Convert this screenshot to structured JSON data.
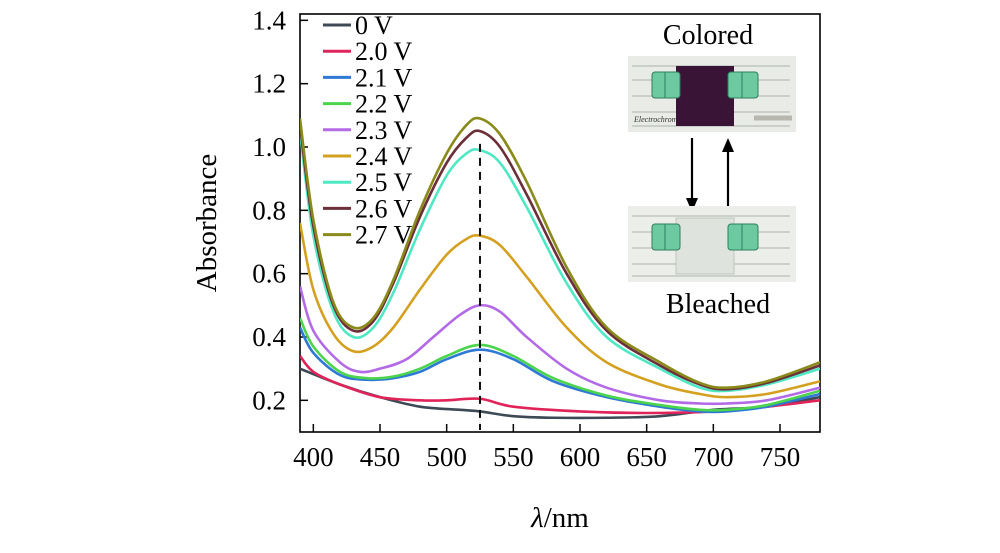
{
  "chart_data": {
    "type": "line",
    "xlabel_italic": "λ",
    "xlabel_rest": "/nm",
    "ylabel": "Absorbance",
    "xlim": [
      390,
      780
    ],
    "ylim": [
      0.1,
      1.42
    ],
    "xticks": [
      400,
      450,
      500,
      550,
      600,
      650,
      700,
      750
    ],
    "yticks": [
      0.2,
      0.4,
      0.6,
      0.8,
      1.0,
      1.2,
      1.4
    ],
    "ytick_labels": [
      "0.2",
      "0.4",
      "0.6",
      "0.8",
      "1.0",
      "1.2",
      "1.4"
    ],
    "peak_marker_x": 525,
    "series": [
      {
        "name": "0 V",
        "color": "#3d4a55",
        "x": [
          390,
          420,
          450,
          480,
          510,
          525,
          550,
          580,
          620,
          660,
          700,
          740,
          780
        ],
        "y": [
          0.3,
          0.25,
          0.21,
          0.18,
          0.17,
          0.165,
          0.15,
          0.145,
          0.145,
          0.15,
          0.17,
          0.18,
          0.21
        ]
      },
      {
        "name": "2.0 V",
        "color": "#e0245a",
        "x": [
          390,
          400,
          420,
          450,
          480,
          500,
          525,
          550,
          600,
          650,
          700,
          740,
          780
        ],
        "y": [
          0.34,
          0.29,
          0.25,
          0.21,
          0.2,
          0.2,
          0.205,
          0.18,
          0.165,
          0.16,
          0.165,
          0.18,
          0.2
        ]
      },
      {
        "name": "2.1 V",
        "color": "#2e78d6",
        "x": [
          390,
          400,
          420,
          440,
          460,
          480,
          500,
          525,
          550,
          580,
          620,
          660,
          690,
          710,
          740,
          780
        ],
        "y": [
          0.43,
          0.35,
          0.28,
          0.265,
          0.27,
          0.29,
          0.33,
          0.36,
          0.33,
          0.26,
          0.21,
          0.18,
          0.165,
          0.165,
          0.18,
          0.22
        ]
      },
      {
        "name": "2.2 V",
        "color": "#4cd44c",
        "x": [
          390,
          400,
          420,
          440,
          460,
          480,
          500,
          525,
          550,
          580,
          620,
          660,
          690,
          710,
          740,
          780
        ],
        "y": [
          0.46,
          0.37,
          0.29,
          0.27,
          0.275,
          0.3,
          0.34,
          0.375,
          0.34,
          0.27,
          0.215,
          0.185,
          0.17,
          0.17,
          0.185,
          0.23
        ]
      },
      {
        "name": "2.3 V",
        "color": "#b36ae6",
        "x": [
          390,
          400,
          420,
          435,
          450,
          470,
          490,
          510,
          525,
          540,
          560,
          590,
          620,
          660,
          690,
          710,
          740,
          780
        ],
        "y": [
          0.56,
          0.42,
          0.32,
          0.29,
          0.3,
          0.33,
          0.4,
          0.47,
          0.5,
          0.48,
          0.4,
          0.3,
          0.24,
          0.2,
          0.19,
          0.19,
          0.2,
          0.24
        ]
      },
      {
        "name": "2.4 V",
        "color": "#d4a020",
        "x": [
          390,
          400,
          415,
          430,
          445,
          460,
          480,
          500,
          515,
          525,
          540,
          560,
          590,
          620,
          660,
          690,
          710,
          740,
          780
        ],
        "y": [
          0.76,
          0.55,
          0.41,
          0.355,
          0.37,
          0.43,
          0.55,
          0.66,
          0.71,
          0.72,
          0.69,
          0.59,
          0.43,
          0.32,
          0.25,
          0.22,
          0.21,
          0.22,
          0.26
        ]
      },
      {
        "name": "2.5 V",
        "color": "#4fe8c4",
        "x": [
          390,
          400,
          415,
          430,
          445,
          460,
          480,
          500,
          515,
          525,
          540,
          560,
          590,
          620,
          660,
          690,
          710,
          740,
          780
        ],
        "y": [
          1.05,
          0.72,
          0.48,
          0.4,
          0.43,
          0.54,
          0.74,
          0.91,
          0.98,
          0.99,
          0.95,
          0.81,
          0.57,
          0.4,
          0.3,
          0.24,
          0.23,
          0.25,
          0.3
        ]
      },
      {
        "name": "2.6 V",
        "color": "#6b2f3a",
        "x": [
          390,
          400,
          415,
          430,
          445,
          460,
          480,
          500,
          515,
          525,
          540,
          560,
          590,
          620,
          660,
          690,
          710,
          740,
          780
        ],
        "y": [
          1.07,
          0.75,
          0.5,
          0.42,
          0.45,
          0.57,
          0.78,
          0.95,
          1.03,
          1.05,
          1.0,
          0.85,
          0.6,
          0.42,
          0.31,
          0.25,
          0.235,
          0.255,
          0.31
        ]
      },
      {
        "name": "2.7 V",
        "color": "#8a8a1a",
        "x": [
          390,
          400,
          415,
          430,
          445,
          460,
          480,
          500,
          515,
          525,
          540,
          560,
          590,
          620,
          660,
          690,
          710,
          740,
          780
        ],
        "y": [
          1.09,
          0.77,
          0.51,
          0.43,
          0.46,
          0.58,
          0.8,
          0.98,
          1.07,
          1.09,
          1.04,
          0.89,
          0.62,
          0.43,
          0.32,
          0.255,
          0.24,
          0.26,
          0.32
        ]
      }
    ],
    "inset": {
      "top_label": "Colored",
      "bottom_label": "Bleached",
      "photo_text": "Electrochromism"
    }
  }
}
